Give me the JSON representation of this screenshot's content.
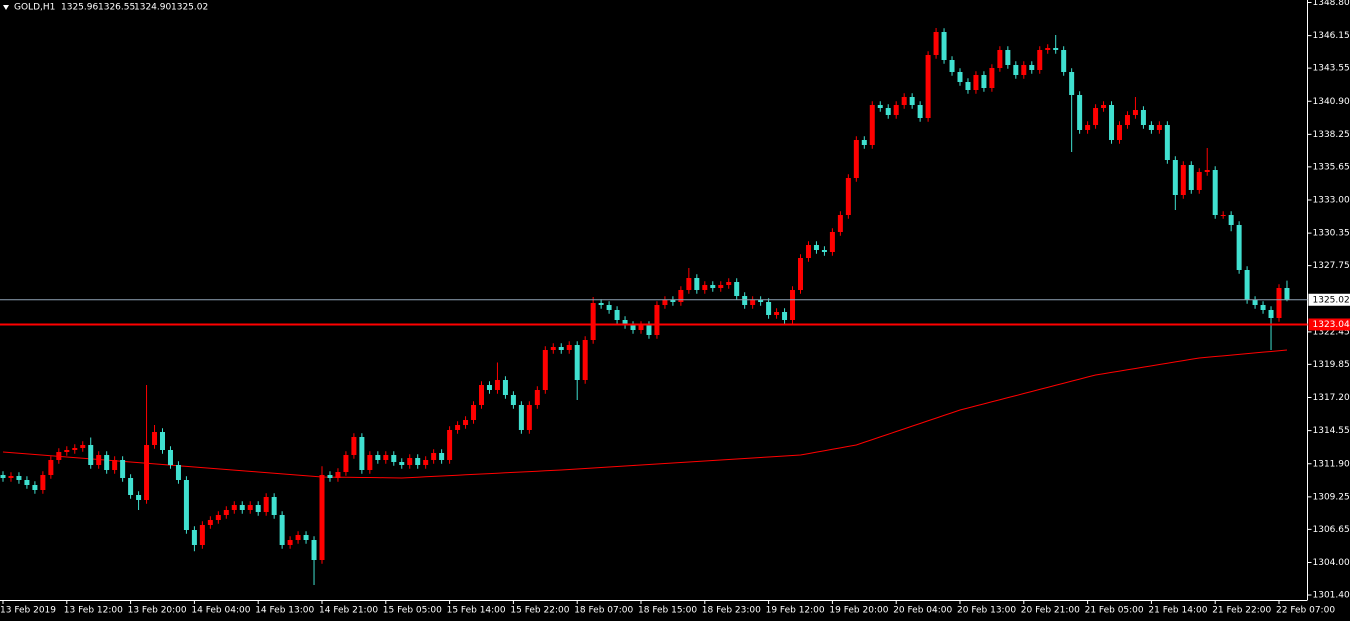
{
  "chart_data": {
    "type": "candlestick",
    "title": "GOLD,H1",
    "quote_labels": [
      "1325.96",
      "1326.55",
      "1324.90",
      "1325.02"
    ],
    "up_color": "#ff0000",
    "down_color": "#40e0d0",
    "categories": [
      "13 Feb 2019",
      null,
      null,
      null,
      null,
      null,
      null,
      null,
      "13 Feb 12:00",
      null,
      null,
      null,
      null,
      null,
      null,
      null,
      "13 Feb 20:00",
      null,
      null,
      null,
      null,
      null,
      null,
      null,
      "14 Feb 04:00",
      null,
      null,
      null,
      null,
      null,
      null,
      null,
      "14 Feb 13:00",
      null,
      null,
      null,
      null,
      null,
      null,
      null,
      "14 Feb 21:00",
      null,
      null,
      null,
      null,
      null,
      null,
      null,
      "15 Feb 05:00",
      null,
      null,
      null,
      null,
      null,
      null,
      null,
      "15 Feb 14:00",
      null,
      null,
      null,
      null,
      null,
      null,
      null,
      "15 Feb 22:00",
      null,
      null,
      null,
      null,
      null,
      null,
      null,
      "18 Feb 07:00",
      null,
      null,
      null,
      null,
      null,
      null,
      null,
      "18 Feb 15:00",
      null,
      null,
      null,
      null,
      null,
      null,
      null,
      "18 Feb 23:00",
      null,
      null,
      null,
      null,
      null,
      null,
      null,
      "19 Feb 12:00",
      null,
      null,
      null,
      null,
      null,
      null,
      null,
      "19 Feb 20:00",
      null,
      null,
      null,
      null,
      null,
      null,
      null,
      "20 Feb 04:00",
      null,
      null,
      null,
      null,
      null,
      null,
      null,
      "20 Feb 13:00",
      null,
      null,
      null,
      null,
      null,
      null,
      null,
      "20 Feb 21:00",
      null,
      null,
      null,
      null,
      null,
      null,
      null,
      "21 Feb 05:00",
      null,
      null,
      null,
      null,
      null,
      null,
      null,
      "21 Feb 14:00",
      null,
      null,
      null,
      null,
      null,
      null,
      null,
      "21 Feb 22:00",
      null,
      null,
      null,
      null,
      null,
      null,
      null,
      "22 Feb 07:00",
      null
    ],
    "open": [
      1311.0,
      1310.76,
      1310.92,
      1310.6,
      1310.2,
      1309.8,
      1311.0,
      1312.2,
      1312.84,
      1313.0,
      1313.16,
      1313.4,
      1311.8,
      1312.6,
      1311.4,
      1312.2,
      1310.76,
      1309.4,
      1309.0,
      1313.4,
      1314.44,
      1313.0,
      1311.8,
      1310.6,
      1306.6,
      1305.4,
      1307.0,
      1307.4,
      1307.8,
      1308.2,
      1308.6,
      1308.2,
      1308.6,
      1308.04,
      1309.24,
      1307.8,
      1305.4,
      1305.8,
      1306.2,
      1305.8,
      1304.2,
      1311.0,
      1310.76,
      1311.24,
      1312.6,
      1314.04,
      1311.4,
      1312.6,
      1312.2,
      1312.6,
      1312.04,
      1311.8,
      1312.36,
      1311.8,
      1312.2,
      1312.76,
      1312.2,
      1314.6,
      1315.0,
      1315.4,
      1316.6,
      1318.2,
      1317.8,
      1318.6,
      1317.4,
      1316.6,
      1314.6,
      1316.6,
      1317.8,
      1321.0,
      1321.24,
      1321.0,
      1321.4,
      1318.6,
      1321.8,
      1324.76,
      1324.6,
      1324.2,
      1323.4,
      1323.0,
      1322.6,
      1323.0,
      1322.2,
      1324.6,
      1325.0,
      1324.84,
      1325.8,
      1326.76,
      1325.8,
      1326.2,
      1325.96,
      1326.2,
      1326.44,
      1325.32,
      1324.6,
      1325.0,
      1324.84,
      1323.8,
      1324.04,
      1323.4,
      1325.8,
      1328.36,
      1329.4,
      1329.0,
      1328.84,
      1330.44,
      1331.8,
      1334.76,
      1337.8,
      1337.4,
      1340.6,
      1340.36,
      1339.8,
      1340.6,
      1341.24,
      1340.6,
      1339.56,
      1344.6,
      1346.44,
      1344.2,
      1343.24,
      1342.44,
      1341.8,
      1343.0,
      1341.96,
      1343.56,
      1345.0,
      1343.8,
      1343.0,
      1343.8,
      1343.4,
      1345.0,
      1345.16,
      1345.0,
      1343.24,
      1341.4,
      1338.6,
      1339.0,
      1340.36,
      1340.6,
      1337.8,
      1339.0,
      1339.8,
      1340.2,
      1339.0,
      1338.6,
      1339.0,
      1336.2,
      1333.4,
      1335.8,
      1333.8,
      1335.24,
      1335.4,
      1331.8,
      1331.8,
      1331.0,
      1327.4,
      1325.0,
      1324.6,
      1324.2,
      1323.56,
      1325.96
    ],
    "high": [
      1311.3,
      1311.22,
      1311.22,
      1310.9,
      1310.5,
      1311.3,
      1312.5,
      1313.14,
      1313.3,
      1313.46,
      1313.7,
      1314.0,
      1312.9,
      1312.9,
      1312.5,
      1312.5,
      1311.06,
      1309.7,
      1318.2,
      1315.0,
      1314.74,
      1313.3,
      1312.1,
      1310.9,
      1306.9,
      1307.3,
      1307.7,
      1308.1,
      1308.5,
      1308.9,
      1308.9,
      1308.9,
      1308.9,
      1309.54,
      1309.54,
      1308.1,
      1306.1,
      1306.5,
      1306.5,
      1306.1,
      1311.7,
      1311.3,
      1311.54,
      1312.9,
      1314.34,
      1314.34,
      1312.9,
      1312.9,
      1312.9,
      1312.9,
      1312.34,
      1312.66,
      1312.66,
      1312.5,
      1313.06,
      1313.06,
      1314.9,
      1315.3,
      1315.7,
      1316.9,
      1318.5,
      1318.5,
      1320.0,
      1318.9,
      1317.7,
      1316.9,
      1316.9,
      1318.1,
      1321.3,
      1321.54,
      1321.54,
      1321.7,
      1321.7,
      1322.1,
      1325.24,
      1325.06,
      1324.9,
      1324.5,
      1323.7,
      1323.3,
      1323.3,
      1323.3,
      1324.9,
      1325.3,
      1325.3,
      1326.1,
      1327.56,
      1327.06,
      1326.5,
      1326.5,
      1326.5,
      1326.74,
      1326.74,
      1325.62,
      1325.3,
      1325.3,
      1325.14,
      1324.34,
      1324.34,
      1326.1,
      1328.66,
      1329.7,
      1329.7,
      1329.3,
      1330.74,
      1332.1,
      1335.06,
      1338.1,
      1338.1,
      1340.9,
      1340.9,
      1340.66,
      1340.9,
      1341.54,
      1341.54,
      1340.9,
      1344.9,
      1346.76,
      1346.74,
      1344.5,
      1343.54,
      1342.74,
      1343.3,
      1343.3,
      1343.86,
      1345.3,
      1345.3,
      1344.1,
      1344.1,
      1344.1,
      1345.3,
      1345.46,
      1346.2,
      1345.3,
      1343.54,
      1341.7,
      1339.3,
      1340.66,
      1340.9,
      1340.9,
      1339.3,
      1340.1,
      1341.24,
      1340.5,
      1339.3,
      1339.3,
      1339.3,
      1336.5,
      1336.1,
      1336.1,
      1335.54,
      1337.16,
      1335.7,
      1332.1,
      1332.1,
      1331.3,
      1327.7,
      1325.3,
      1324.9,
      1324.5,
      1326.26,
      1326.55
    ],
    "low": [
      1310.46,
      1310.46,
      1310.3,
      1309.9,
      1309.5,
      1309.5,
      1310.7,
      1311.9,
      1312.54,
      1312.7,
      1312.86,
      1311.5,
      1311.5,
      1311.1,
      1311.1,
      1310.46,
      1309.1,
      1308.2,
      1308.7,
      1313.1,
      1312.7,
      1311.5,
      1310.3,
      1306.3,
      1304.9,
      1305.1,
      1306.7,
      1307.1,
      1307.5,
      1307.9,
      1307.9,
      1307.9,
      1307.74,
      1307.74,
      1307.5,
      1305.1,
      1305.1,
      1305.5,
      1305.5,
      1302.2,
      1303.9,
      1310.46,
      1310.46,
      1310.94,
      1312.3,
      1311.1,
      1311.1,
      1311.9,
      1311.9,
      1311.74,
      1311.5,
      1311.5,
      1311.5,
      1311.5,
      1311.9,
      1311.9,
      1311.9,
      1314.3,
      1314.7,
      1315.1,
      1316.3,
      1317.5,
      1317.5,
      1317.1,
      1316.3,
      1314.3,
      1314.3,
      1316.3,
      1317.5,
      1320.7,
      1320.7,
      1320.7,
      1317.0,
      1318.3,
      1321.5,
      1324.3,
      1323.9,
      1323.1,
      1322.7,
      1322.3,
      1322.3,
      1321.9,
      1321.9,
      1324.3,
      1324.54,
      1324.54,
      1325.5,
      1325.5,
      1325.5,
      1325.66,
      1325.66,
      1325.9,
      1325.02,
      1324.3,
      1324.3,
      1324.54,
      1323.5,
      1323.5,
      1323.1,
      1323.1,
      1325.5,
      1328.06,
      1328.7,
      1328.54,
      1328.54,
      1330.14,
      1331.5,
      1334.46,
      1337.1,
      1337.1,
      1340.06,
      1339.5,
      1339.5,
      1340.3,
      1340.3,
      1339.26,
      1339.26,
      1344.3,
      1343.9,
      1342.94,
      1342.14,
      1341.5,
      1341.5,
      1341.66,
      1341.66,
      1343.26,
      1343.5,
      1342.7,
      1342.7,
      1343.1,
      1343.1,
      1344.7,
      1344.7,
      1342.94,
      1336.84,
      1338.3,
      1338.3,
      1338.7,
      1340.06,
      1337.5,
      1337.5,
      1338.7,
      1339.5,
      1338.7,
      1338.3,
      1338.3,
      1335.9,
      1332.2,
      1333.1,
      1333.5,
      1333.5,
      1334.94,
      1331.5,
      1331.5,
      1330.5,
      1327.1,
      1324.7,
      1324.3,
      1323.9,
      1321.0,
      1323.26,
      1324.9
    ],
    "close": [
      1310.76,
      1310.92,
      1310.6,
      1310.2,
      1309.8,
      1311.0,
      1312.2,
      1312.84,
      1313.0,
      1313.16,
      1313.4,
      1311.8,
      1312.6,
      1311.4,
      1312.2,
      1310.76,
      1309.4,
      1309.0,
      1313.4,
      1314.44,
      1313.0,
      1311.8,
      1310.6,
      1306.6,
      1305.4,
      1307.0,
      1307.4,
      1307.8,
      1308.2,
      1308.6,
      1308.2,
      1308.6,
      1308.04,
      1309.24,
      1307.8,
      1305.4,
      1305.8,
      1306.2,
      1305.8,
      1304.2,
      1311.0,
      1310.76,
      1311.24,
      1312.6,
      1314.04,
      1311.4,
      1312.6,
      1312.2,
      1312.6,
      1312.04,
      1311.8,
      1312.36,
      1311.8,
      1312.2,
      1312.76,
      1312.2,
      1314.6,
      1315.0,
      1315.4,
      1316.6,
      1318.2,
      1317.8,
      1318.6,
      1317.4,
      1316.6,
      1314.6,
      1316.6,
      1317.8,
      1321.0,
      1321.24,
      1321.0,
      1321.4,
      1318.6,
      1321.8,
      1324.76,
      1324.6,
      1324.2,
      1323.4,
      1323.0,
      1322.6,
      1323.0,
      1322.2,
      1324.6,
      1325.0,
      1324.84,
      1325.8,
      1326.76,
      1325.8,
      1326.2,
      1325.96,
      1326.2,
      1326.44,
      1325.32,
      1324.6,
      1325.0,
      1324.84,
      1323.8,
      1324.04,
      1323.4,
      1325.8,
      1328.36,
      1329.4,
      1329.0,
      1328.84,
      1330.44,
      1331.8,
      1334.76,
      1337.8,
      1337.4,
      1340.6,
      1340.36,
      1339.8,
      1340.6,
      1341.24,
      1340.6,
      1339.56,
      1344.6,
      1346.44,
      1344.2,
      1343.24,
      1342.44,
      1341.8,
      1343.0,
      1341.96,
      1343.56,
      1345.0,
      1343.8,
      1343.0,
      1343.8,
      1343.4,
      1345.0,
      1345.16,
      1345.0,
      1343.24,
      1341.4,
      1338.6,
      1339.0,
      1340.36,
      1340.6,
      1337.8,
      1339.0,
      1339.8,
      1340.2,
      1339.0,
      1338.6,
      1339.0,
      1336.2,
      1333.4,
      1335.8,
      1333.8,
      1335.24,
      1335.4,
      1331.8,
      1331.8,
      1331.0,
      1327.4,
      1325.0,
      1324.6,
      1324.2,
      1323.56,
      1325.96,
      1325.02
    ],
    "ma": {
      "color": "#ff0000",
      "values": [
        1312.84,
        1312.79,
        1312.74,
        1312.69,
        1312.64,
        1312.59,
        1312.54,
        1312.49,
        1312.44,
        1312.39,
        1312.34,
        1312.29,
        1312.24,
        1312.19,
        1312.14,
        1312.09,
        1312.04,
        1311.99,
        1311.94,
        1311.89,
        1311.84,
        1311.79,
        1311.74,
        1311.69,
        1311.64,
        1311.59,
        1311.54,
        1311.49,
        1311.44,
        1311.39,
        1311.34,
        1311.29,
        1311.24,
        1311.19,
        1311.14,
        1311.09,
        1311.04,
        1310.99,
        1310.94,
        1310.89,
        1310.84,
        1310.83,
        1310.82,
        1310.82,
        1310.81,
        1310.8,
        1310.8,
        1310.79,
        1310.78,
        1310.77,
        1310.76,
        1310.79,
        1310.82,
        1310.86,
        1310.89,
        1310.92,
        1310.95,
        1310.98,
        1311.02,
        1311.05,
        1311.08,
        1311.11,
        1311.14,
        1311.18,
        1311.21,
        1311.24,
        1311.27,
        1311.3,
        1311.34,
        1311.37,
        1311.4,
        1311.44,
        1311.48,
        1311.52,
        1311.56,
        1311.6,
        1311.64,
        1311.68,
        1311.72,
        1311.76,
        1311.8,
        1311.84,
        1311.88,
        1311.92,
        1311.96,
        1312.0,
        1312.04,
        1312.08,
        1312.12,
        1312.16,
        1312.2,
        1312.24,
        1312.28,
        1312.32,
        1312.36,
        1312.4,
        1312.44,
        1312.48,
        1312.52,
        1312.56,
        1312.6,
        1312.71,
        1312.83,
        1312.94,
        1313.06,
        1313.17,
        1313.29,
        1313.4,
        1313.62,
        1313.83,
        1314.05,
        1314.26,
        1314.48,
        1314.69,
        1314.91,
        1315.12,
        1315.34,
        1315.55,
        1315.77,
        1315.98,
        1316.2,
        1316.36,
        1316.53,
        1316.69,
        1316.86,
        1317.02,
        1317.19,
        1317.35,
        1317.52,
        1317.68,
        1317.85,
        1318.01,
        1318.18,
        1318.34,
        1318.51,
        1318.67,
        1318.84,
        1319.0,
        1319.1,
        1319.21,
        1319.31,
        1319.42,
        1319.52,
        1319.63,
        1319.73,
        1319.84,
        1319.94,
        1320.05,
        1320.15,
        1320.26,
        1320.36,
        1320.42,
        1320.48,
        1320.53,
        1320.59,
        1320.65,
        1320.71,
        1320.77,
        1320.83,
        1320.88,
        1320.94,
        1321.0
      ]
    },
    "current_price": {
      "value": 1325.02,
      "label": "1325.02"
    },
    "level": {
      "value": 1323.04,
      "label": "1323.04"
    },
    "ylim": [
      1301.0,
      1349.0
    ],
    "yticks": [
      {
        "value": 1348.8,
        "label": "1348.80"
      },
      {
        "value": 1346.15,
        "label": "1346.15"
      },
      {
        "value": 1343.55,
        "label": "1343.55"
      },
      {
        "value": 1340.9,
        "label": "1340.90"
      },
      {
        "value": 1338.25,
        "label": "1338.25"
      },
      {
        "value": 1335.65,
        "label": "1335.65"
      },
      {
        "value": 1333.0,
        "label": "1333.00"
      },
      {
        "value": 1330.35,
        "label": "1330.35"
      },
      {
        "value": 1327.75,
        "label": "1327.75"
      },
      {
        "value": 1322.45,
        "label": "1322.45"
      },
      {
        "value": 1319.85,
        "label": "1319.85"
      },
      {
        "value": 1317.2,
        "label": "1317.20"
      },
      {
        "value": 1314.55,
        "label": "1314.55"
      },
      {
        "value": 1311.9,
        "label": "1311.90"
      },
      {
        "value": 1309.25,
        "label": "1309.25"
      },
      {
        "value": 1306.65,
        "label": "1306.65"
      },
      {
        "value": 1304.0,
        "label": "1304.00"
      },
      {
        "value": 1301.4,
        "label": "1301.40"
      }
    ],
    "grid": false
  }
}
